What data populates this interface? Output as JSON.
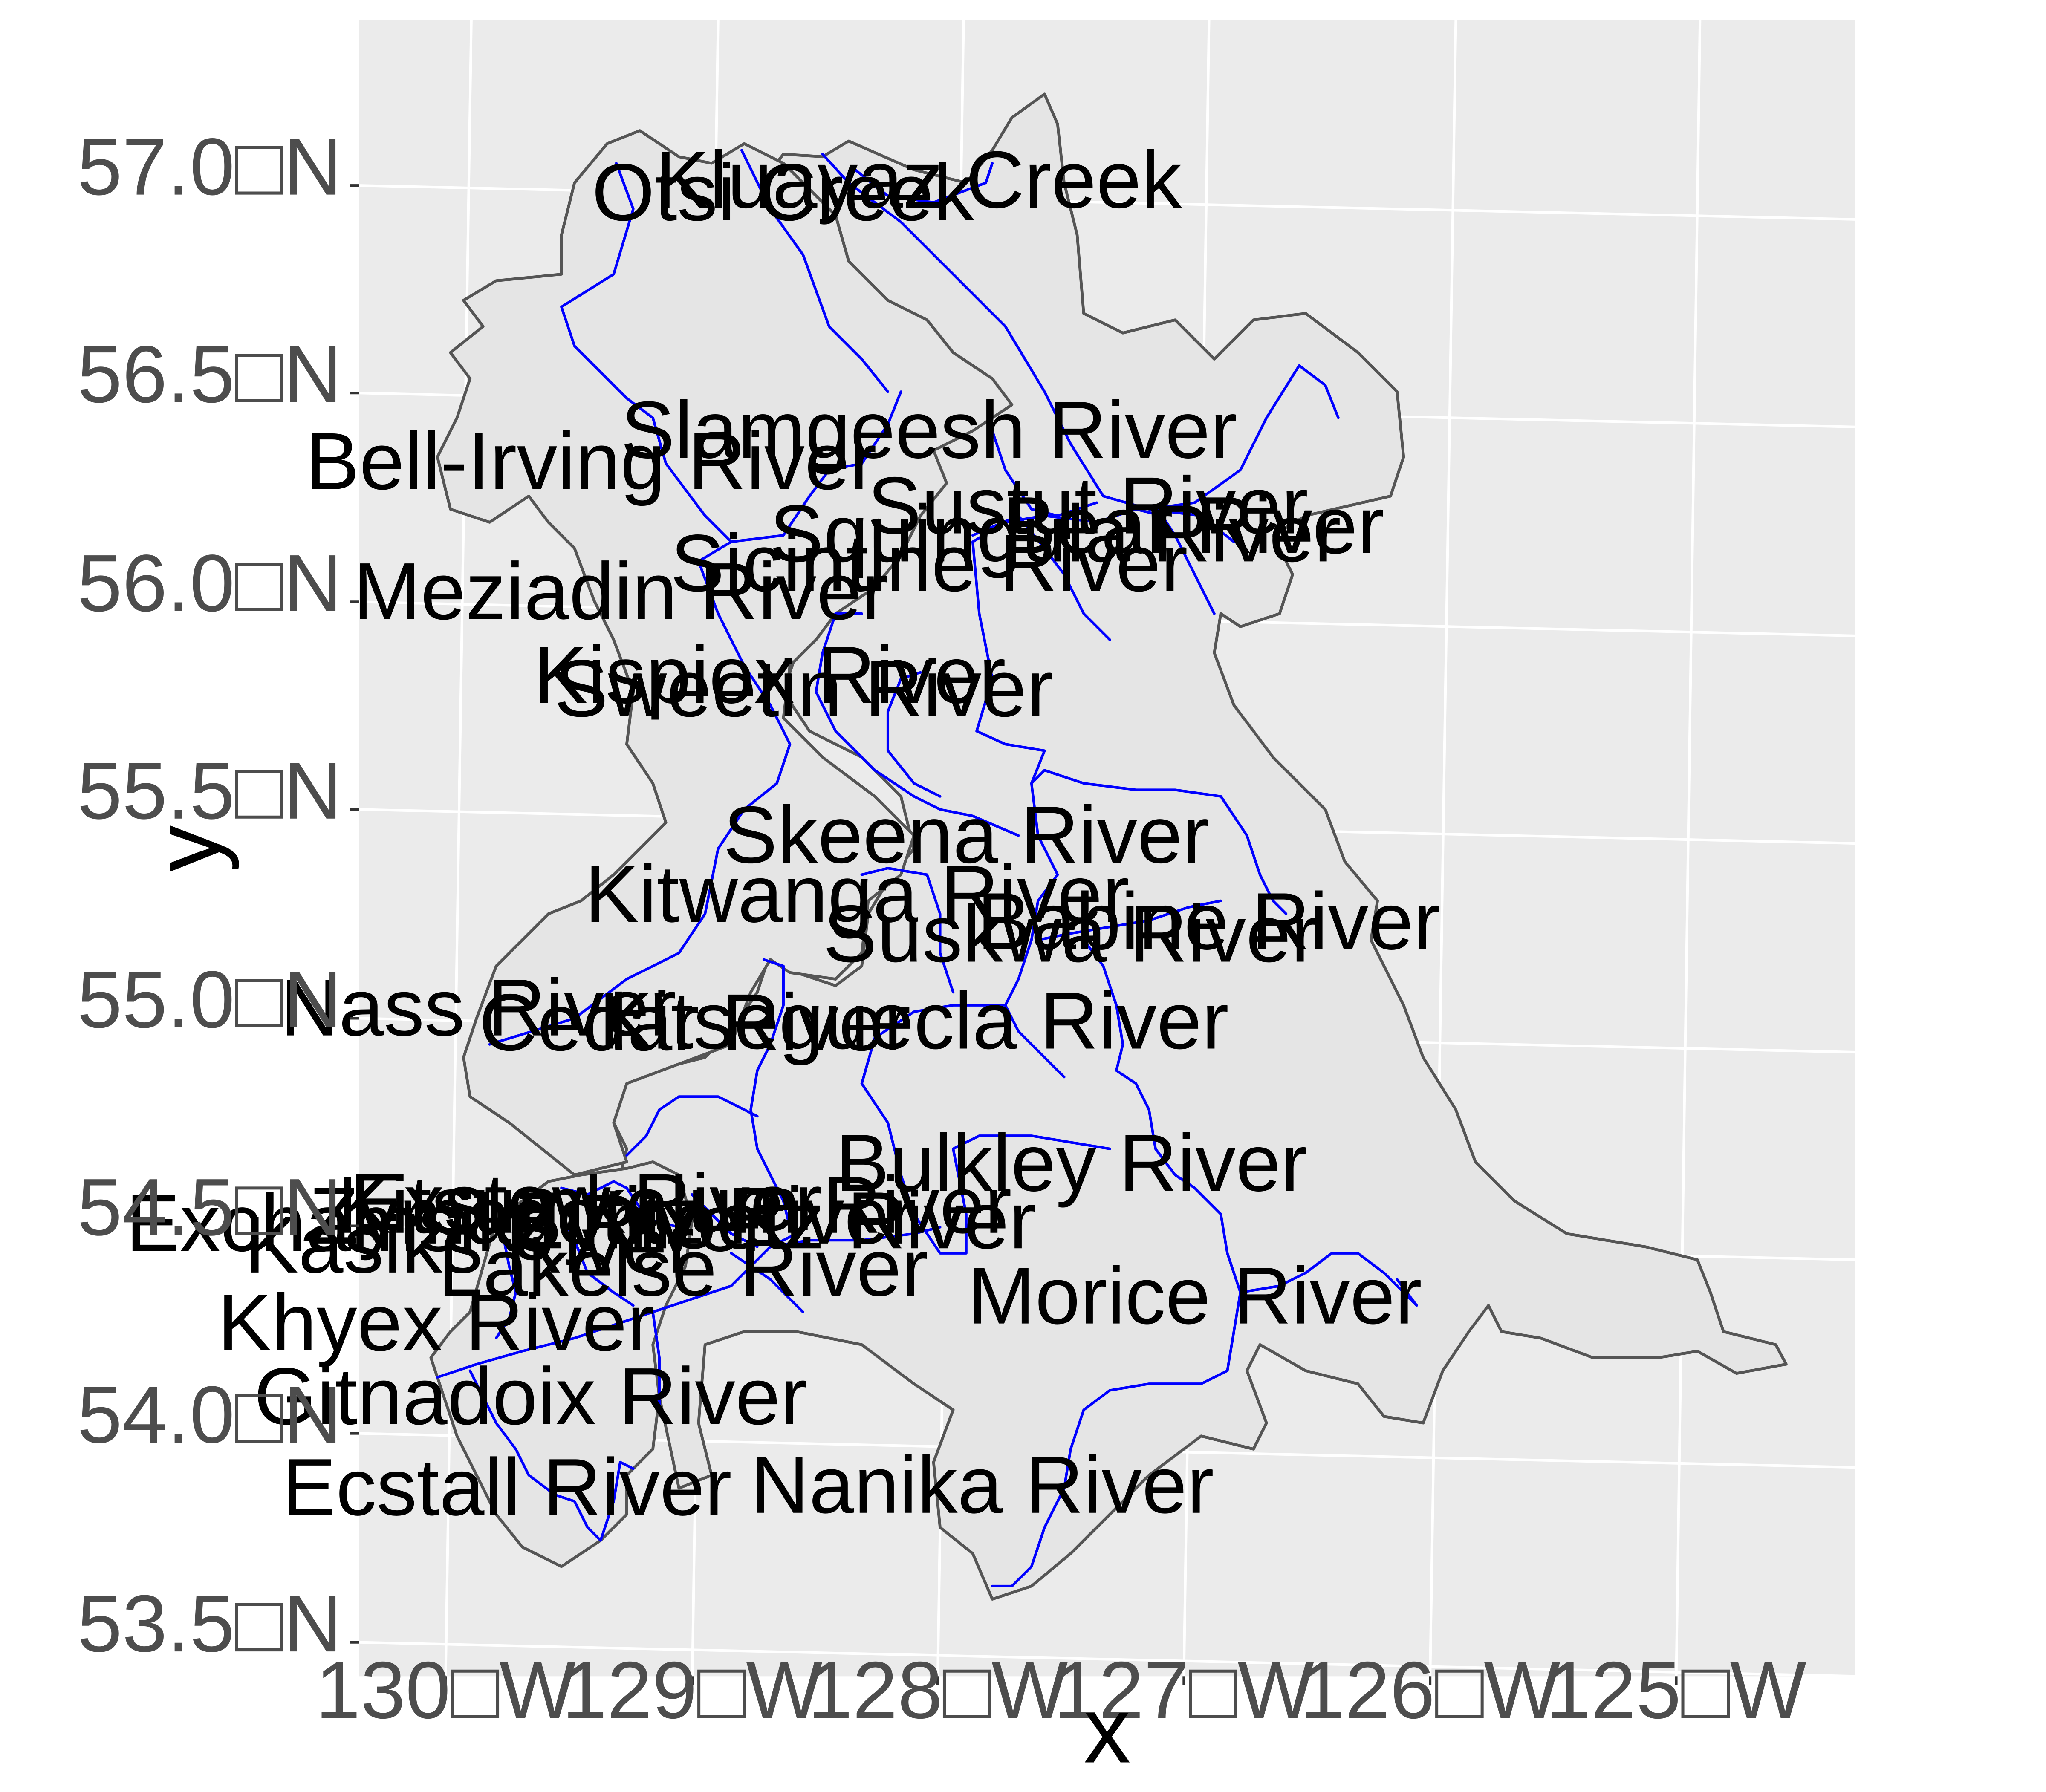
{
  "plot": {
    "x_title": "x",
    "y_title": "y",
    "panel_background": "#ebebeb",
    "grid_color": "#ffffff",
    "basin_fill": "#e5e5e5",
    "basin_outline": "#555555",
    "river_color": "#0000ff"
  },
  "axes": {
    "x_ticks": [
      "130□W",
      "129□W",
      "128□W",
      "127□W",
      "126□W",
      "125□W"
    ],
    "y_ticks": [
      "57.0□N",
      "56.5□N",
      "56.0□N",
      "55.5□N",
      "55.0□N",
      "54.5□N",
      "54.0□N",
      "53.5□N"
    ]
  },
  "rivers": [
    {
      "name": "Kluayaz Creek",
      "lon": -128.18,
      "lat": 56.98
    },
    {
      "name": "Otsi Creek",
      "lon": -128.73,
      "lat": 56.94
    },
    {
      "name": "Slamgeesh River",
      "lon": -128.12,
      "lat": 56.38
    },
    {
      "name": "Bell-Irving River",
      "lon": -129.49,
      "lat": 56.28
    },
    {
      "name": "Sustut River",
      "lon": -127.47,
      "lat": 56.21
    },
    {
      "name": "Bear River",
      "lon": -127.04,
      "lat": 56.17
    },
    {
      "name": "Squingula River",
      "lon": -127.6,
      "lat": 56.14
    },
    {
      "name": "Sicintine River",
      "lon": -128.11,
      "lat": 56.06
    },
    {
      "name": "Meziadin River",
      "lon": -129.36,
      "lat": 55.97
    },
    {
      "name": "Kispiox River",
      "lon": -128.75,
      "lat": 55.78
    },
    {
      "name": "Sweetin River",
      "lon": -128.61,
      "lat": 55.75
    },
    {
      "name": "Skeena River",
      "lon": -127.94,
      "lat": 55.41
    },
    {
      "name": "Kitwanga River",
      "lon": -128.38,
      "lat": 55.26
    },
    {
      "name": "Babine River",
      "lon": -126.95,
      "lat": 55.22
    },
    {
      "name": "Suskwa River",
      "lon": -127.51,
      "lat": 55.18
    },
    {
      "name": "Nass River",
      "lon": -129.91,
      "lat": 54.96
    },
    {
      "name": "Cedar River",
      "lon": -129.03,
      "lat": 54.94
    },
    {
      "name": "Kitseguecla River",
      "lon": -128.14,
      "lat": 54.96
    },
    {
      "name": "Bulkley River",
      "lon": -127.49,
      "lat": 54.63
    },
    {
      "name": "Exstew River",
      "lon": -129.46,
      "lat": 54.5
    },
    {
      "name": "Kitsumkalum River",
      "lon": -129.1,
      "lat": 54.5
    },
    {
      "name": "Zymagotitz River",
      "lon": -129.35,
      "lat": 54.47
    },
    {
      "name": "Zymoetz River",
      "lon": -128.69,
      "lat": 54.47
    },
    {
      "name": "Exchamsiks River",
      "lon": -130.02,
      "lat": 54.44
    },
    {
      "name": "Kasiks River",
      "lon": -129.93,
      "lat": 54.39
    },
    {
      "name": "Lakelse River",
      "lon": -129.06,
      "lat": 54.35
    },
    {
      "name": "Morice River",
      "lon": -126.98,
      "lat": 54.32
    },
    {
      "name": "Khyex River",
      "lon": -130.06,
      "lat": 54.2
    },
    {
      "name": "Gitnadoix River",
      "lon": -129.67,
      "lat": 54.03
    },
    {
      "name": "Nanika River",
      "lon": -127.83,
      "lat": 53.85
    },
    {
      "name": "Ecstall River",
      "lon": -129.76,
      "lat": 53.81
    }
  ]
}
